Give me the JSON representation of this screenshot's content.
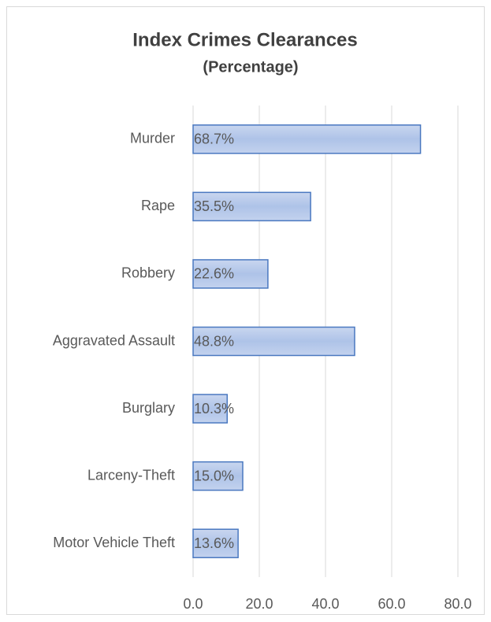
{
  "chart_data": {
    "type": "bar",
    "orientation": "horizontal",
    "title": "Index Crimes Clearances",
    "subtitle": "(Percentage)",
    "categories": [
      "Murder",
      "Rape",
      "Robbery",
      "Aggravated Assault",
      "Burglary",
      "Larceny-Theft",
      "Motor Vehicle Theft"
    ],
    "values": [
      68.7,
      35.5,
      22.6,
      48.8,
      10.3,
      15.0,
      13.6
    ],
    "value_labels": [
      "68.7%",
      "35.5%",
      "22.6%",
      "48.8%",
      "10.3%",
      "15.0%",
      "13.6%"
    ],
    "color": "#4a78c0",
    "xlim": [
      0,
      80
    ],
    "xticks": [
      {
        "value": 0,
        "label": "0.0"
      },
      {
        "value": 20,
        "label": "20.0"
      },
      {
        "value": 40,
        "label": "40.0"
      },
      {
        "value": 60,
        "label": "60.0"
      },
      {
        "value": 80,
        "label": "80.0"
      }
    ],
    "grid": true
  }
}
